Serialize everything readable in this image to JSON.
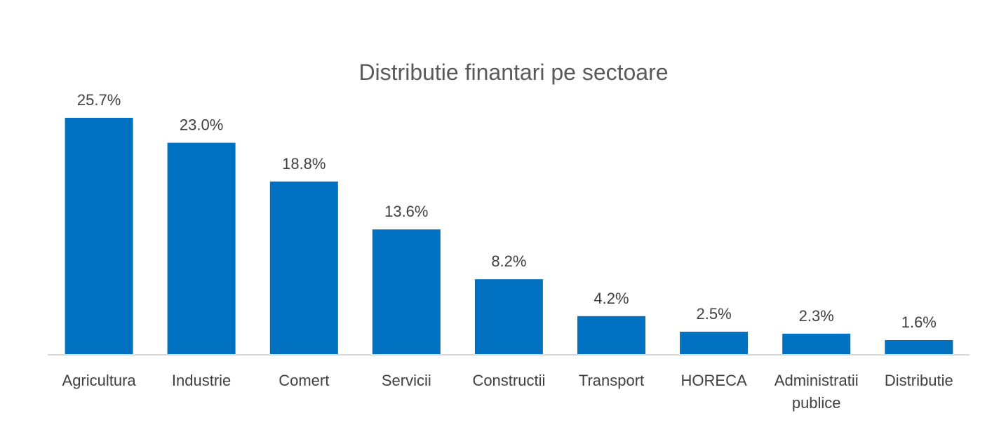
{
  "chart_data": {
    "type": "bar",
    "title": "Distributie finantari pe sectoare",
    "xlabel": "",
    "ylabel": "",
    "categories": [
      "Agricultura",
      "Industrie",
      "Comert",
      "Servicii",
      "Constructii",
      "Transport",
      "HORECA",
      "Administratii publice",
      "Distributie"
    ],
    "category_lines": [
      [
        "Agricultura"
      ],
      [
        "Industrie"
      ],
      [
        "Comert"
      ],
      [
        "Servicii"
      ],
      [
        "Constructii"
      ],
      [
        "Transport"
      ],
      [
        "HORECA"
      ],
      [
        "Administratii",
        "publice"
      ],
      [
        "Distributie"
      ]
    ],
    "values": [
      25.7,
      23.0,
      18.8,
      13.6,
      8.2,
      4.2,
      2.5,
      2.3,
      1.6
    ],
    "value_labels": [
      "25.7%",
      "23.0%",
      "18.8%",
      "13.6%",
      "8.2%",
      "4.2%",
      "2.5%",
      "2.3%",
      "1.6%"
    ],
    "unit": "%",
    "ylim": [
      0,
      25.7
    ],
    "grid": false,
    "legend": "none",
    "colors": {
      "bar": "#0070c0",
      "axis": "#d9d9d9",
      "text": "#404040",
      "title": "#595959"
    }
  }
}
